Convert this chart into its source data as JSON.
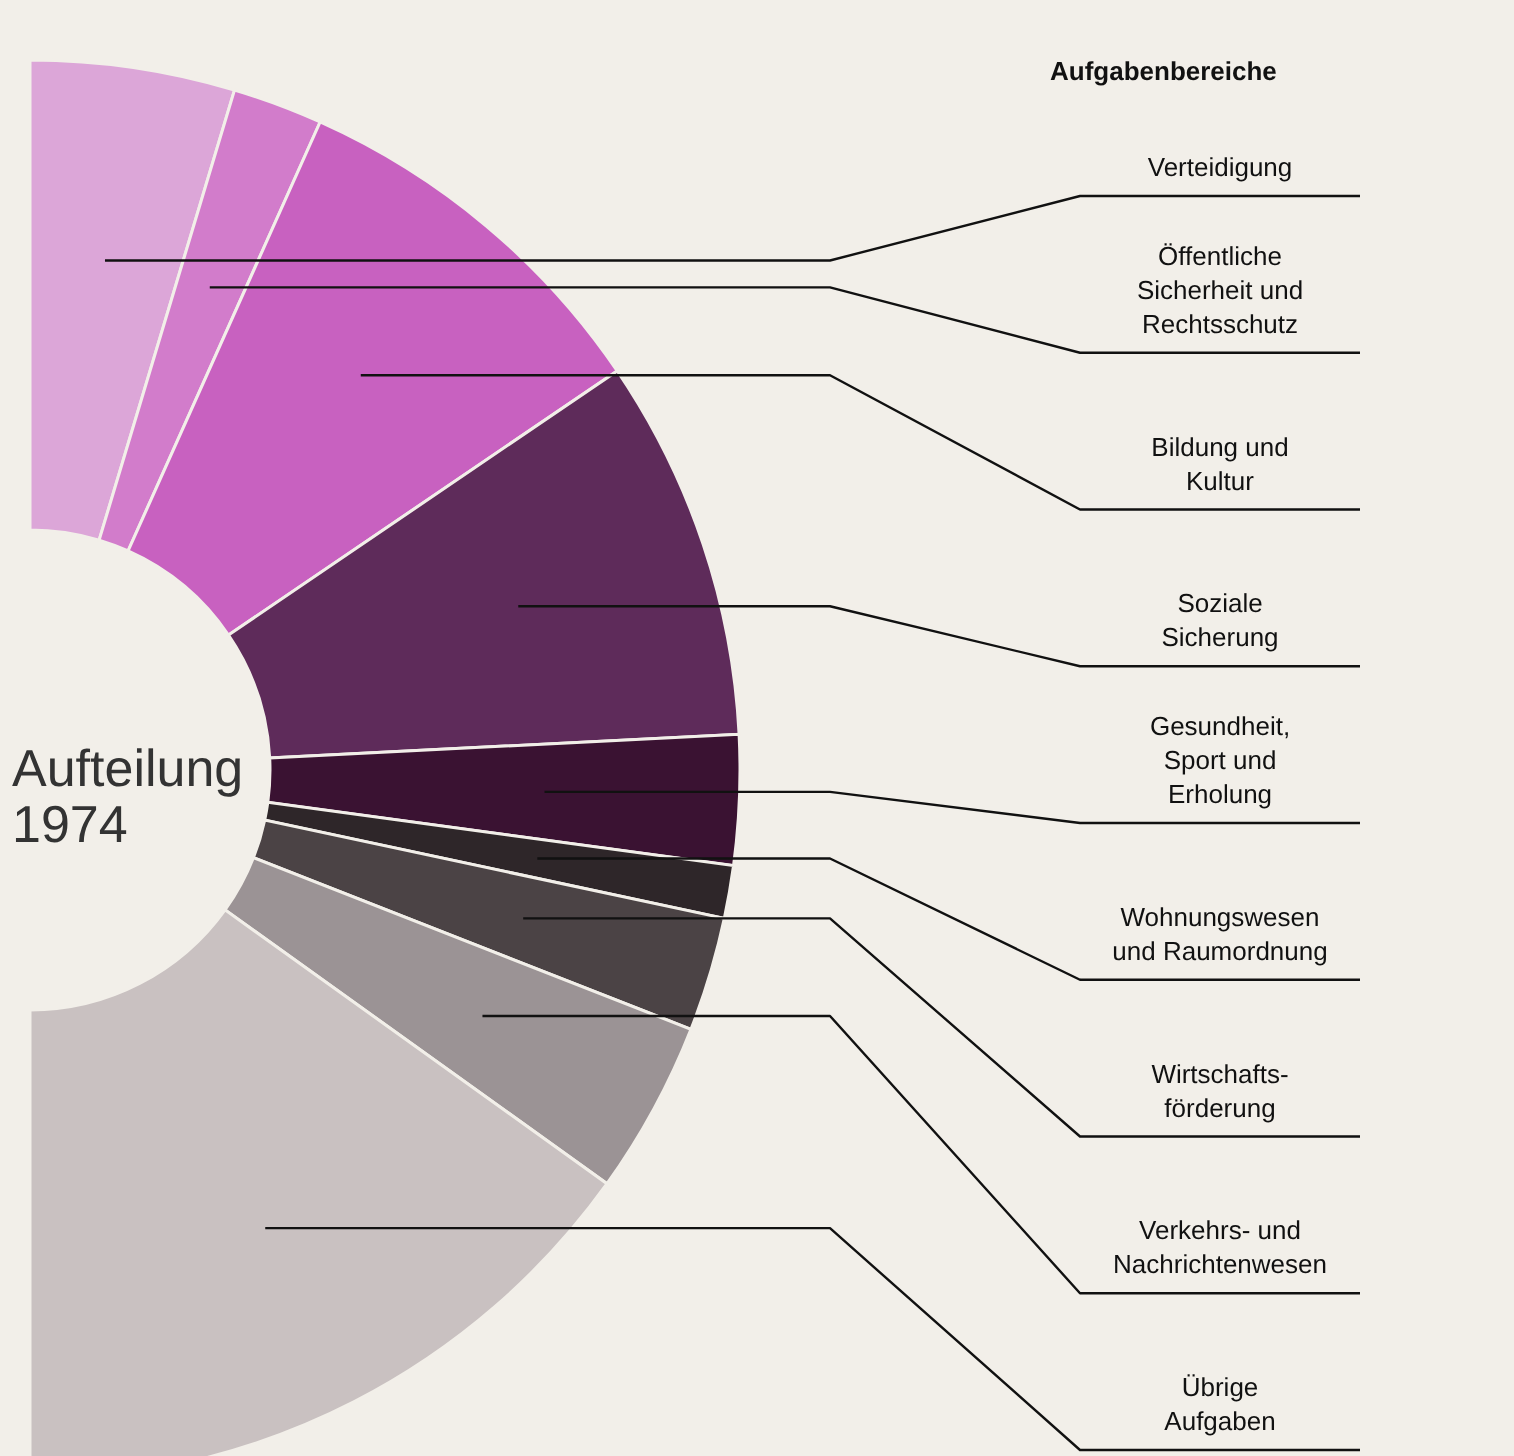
{
  "chart_data": {
    "type": "donut",
    "title": "Aufteilung\n1974",
    "legend_title": "Aufgabenbereiche",
    "categories": [
      "Verteidigung",
      "Öffentliche\nSicherheit und\nRechtsschutz",
      "Bildung und\nKultur",
      "Soziale\nSicherung",
      "Gesundheit,\nSport und\nErholung",
      "Wohnungswesen\nund Raumordnung",
      "Wirtschafts-\nförderung",
      "Verkehrs- und\nNachrichtenwesen",
      "Übrige\nAufgaben"
    ],
    "values": [
      9.3,
      4.1,
      17.6,
      17.4,
      5.9,
      2.4,
      5.2,
      7.9,
      30.2
    ],
    "colors": [
      "#dca6d8",
      "#d27ccb",
      "#c861c0",
      "#5e2b5a",
      "#3a1232",
      "#2e2629",
      "#4b4345",
      "#9b9395",
      "#c9c1c1"
    ]
  }
}
